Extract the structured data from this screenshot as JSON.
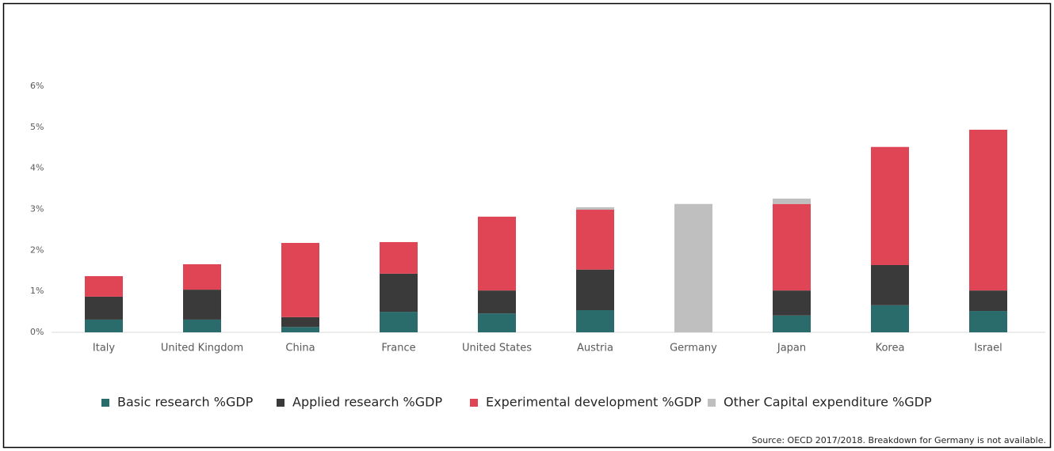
{
  "chart_data": {
    "type": "stacked_bar",
    "categories": [
      "Italy",
      "United Kingdom",
      "China",
      "France",
      "United States",
      "Austria",
      "Germany",
      "Japan",
      "Korea",
      "Israel"
    ],
    "series": [
      {
        "name": "Basic research %GDP",
        "color": "#2a6b6b",
        "values": [
          0.31,
          0.31,
          0.13,
          0.5,
          0.46,
          0.54,
          null,
          0.41,
          0.66,
          0.52
        ]
      },
      {
        "name": "Applied research %GDP",
        "color": "#3a3a3a",
        "values": [
          0.56,
          0.73,
          0.24,
          0.93,
          0.56,
          0.99,
          null,
          0.61,
          0.98,
          0.5
        ]
      },
      {
        "name": "Experimental development %GDP",
        "color": "#e04555",
        "values": [
          0.5,
          0.62,
          1.81,
          0.77,
          1.8,
          1.46,
          null,
          2.11,
          2.88,
          3.92
        ]
      },
      {
        "name": "Other Capital expenditure %GDP",
        "color": "#bfbfbf",
        "values": [
          null,
          null,
          null,
          null,
          null,
          0.06,
          3.13,
          0.13,
          null,
          null
        ]
      }
    ],
    "ylim": [
      0,
      6
    ],
    "yticks": [
      {
        "value": 0,
        "label": "0%"
      },
      {
        "value": 1,
        "label": "1%"
      },
      {
        "value": 2,
        "label": "2%"
      },
      {
        "value": 3,
        "label": "3%"
      },
      {
        "value": 4,
        "label": "4%"
      },
      {
        "value": 5,
        "label": "5%"
      },
      {
        "value": 6,
        "label": "6%"
      }
    ],
    "source": "Source: OECD 2017/2018. Breakdown for Germany is not available."
  }
}
